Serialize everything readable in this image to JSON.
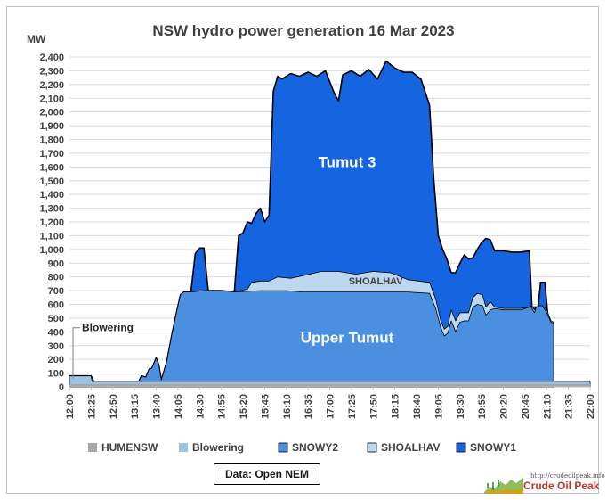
{
  "chart_data": {
    "type": "area",
    "title": "NSW hydro power generation  16 Mar 2023",
    "ylabel": "MW",
    "xlabel": "",
    "ylim": [
      0,
      2400
    ],
    "yticks": [
      0,
      100,
      200,
      300,
      400,
      500,
      600,
      700,
      800,
      900,
      1000,
      1100,
      1200,
      1300,
      1400,
      1500,
      1600,
      1700,
      1800,
      1900,
      2000,
      2100,
      2200,
      2300,
      2400
    ],
    "ytick_labels": [
      "0",
      "100",
      "200",
      "300",
      "400",
      "500",
      "600",
      "700",
      "800",
      "900",
      "1,000",
      "1,100",
      "1,200",
      "1,300",
      "1,400",
      "1,500",
      "1,600",
      "1,700",
      "1,800",
      "1,900",
      "2,000",
      "2,100",
      "2,200",
      "2,300",
      "2,400"
    ],
    "x_range_minutes": [
      720,
      1320
    ],
    "xtick_labels": [
      "12:00",
      "12:25",
      "12:50",
      "13:15",
      "13:40",
      "14:05",
      "14:30",
      "14:55",
      "15:20",
      "15:45",
      "16:10",
      "16:35",
      "17:00",
      "17:25",
      "17:50",
      "18:15",
      "18:40",
      "19:05",
      "19:30",
      "19:55",
      "20:20",
      "20:45",
      "21:10",
      "21:35",
      "22:00"
    ],
    "grid": true,
    "legend_position": "bottom",
    "stacked": true,
    "series": [
      {
        "name": "HUMENSW",
        "color": "#a6a6a6",
        "points": [
          [
            720,
            0
          ],
          [
            1320,
            0
          ]
        ]
      },
      {
        "name": "Blowering",
        "color": "#9dc3e6",
        "points": [
          [
            720,
            80
          ],
          [
            745,
            80
          ],
          [
            746,
            40
          ],
          [
            795,
            40
          ],
          [
            796,
            40
          ],
          [
            1320,
            40
          ]
        ]
      },
      {
        "name": "SNOWY2",
        "color": "#4a8fe0",
        "points": [
          [
            720,
            80
          ],
          [
            745,
            80
          ],
          [
            748,
            40
          ],
          [
            800,
            40
          ],
          [
            803,
            80
          ],
          [
            808,
            70
          ],
          [
            812,
            130
          ],
          [
            815,
            135
          ],
          [
            820,
            210
          ],
          [
            823,
            160
          ],
          [
            826,
            50
          ],
          [
            832,
            180
          ],
          [
            838,
            380
          ],
          [
            843,
            530
          ],
          [
            848,
            670
          ],
          [
            852,
            690
          ],
          [
            860,
            690
          ],
          [
            875,
            700
          ],
          [
            895,
            700
          ],
          [
            910,
            690
          ],
          [
            940,
            700
          ],
          [
            970,
            700
          ],
          [
            990,
            690
          ],
          [
            1010,
            690
          ],
          [
            1040,
            690
          ],
          [
            1070,
            690
          ],
          [
            1110,
            690
          ],
          [
            1135,
            680
          ],
          [
            1142,
            570
          ],
          [
            1148,
            430
          ],
          [
            1152,
            370
          ],
          [
            1156,
            390
          ],
          [
            1160,
            480
          ],
          [
            1165,
            400
          ],
          [
            1170,
            470
          ],
          [
            1175,
            480
          ],
          [
            1180,
            480
          ],
          [
            1185,
            580
          ],
          [
            1190,
            600
          ],
          [
            1196,
            590
          ],
          [
            1200,
            520
          ],
          [
            1205,
            560
          ],
          [
            1210,
            570
          ],
          [
            1220,
            560
          ],
          [
            1240,
            560
          ],
          [
            1250,
            580
          ],
          [
            1252,
            580
          ],
          [
            1256,
            540
          ],
          [
            1258,
            580
          ],
          [
            1262,
            590
          ],
          [
            1265,
            590
          ],
          [
            1270,
            540
          ],
          [
            1275,
            470
          ],
          [
            1278,
            460
          ]
        ]
      },
      {
        "name": "SHOALHAV",
        "color": "#bdd7ee",
        "points": [
          [
            720,
            80
          ],
          [
            745,
            80
          ],
          [
            748,
            40
          ],
          [
            800,
            40
          ],
          [
            803,
            80
          ],
          [
            808,
            70
          ],
          [
            812,
            130
          ],
          [
            815,
            135
          ],
          [
            820,
            210
          ],
          [
            823,
            160
          ],
          [
            826,
            50
          ],
          [
            832,
            180
          ],
          [
            838,
            380
          ],
          [
            843,
            530
          ],
          [
            848,
            670
          ],
          [
            852,
            690
          ],
          [
            860,
            690
          ],
          [
            875,
            700
          ],
          [
            895,
            700
          ],
          [
            910,
            690
          ],
          [
            925,
            710
          ],
          [
            930,
            760
          ],
          [
            940,
            770
          ],
          [
            950,
            770
          ],
          [
            960,
            800
          ],
          [
            975,
            790
          ],
          [
            990,
            810
          ],
          [
            1010,
            840
          ],
          [
            1030,
            840
          ],
          [
            1050,
            820
          ],
          [
            1070,
            840
          ],
          [
            1090,
            830
          ],
          [
            1110,
            780
          ],
          [
            1135,
            760
          ],
          [
            1142,
            640
          ],
          [
            1148,
            480
          ],
          [
            1152,
            420
          ],
          [
            1156,
            440
          ],
          [
            1160,
            560
          ],
          [
            1165,
            480
          ],
          [
            1170,
            540
          ],
          [
            1175,
            540
          ],
          [
            1180,
            540
          ],
          [
            1185,
            650
          ],
          [
            1190,
            680
          ],
          [
            1196,
            670
          ],
          [
            1200,
            580
          ],
          [
            1205,
            620
          ],
          [
            1210,
            580
          ],
          [
            1220,
            570
          ],
          [
            1240,
            570
          ],
          [
            1250,
            580
          ],
          [
            1252,
            590
          ],
          [
            1256,
            560
          ],
          [
            1258,
            580
          ],
          [
            1262,
            590
          ],
          [
            1265,
            590
          ],
          [
            1270,
            560
          ],
          [
            1275,
            480
          ],
          [
            1278,
            470
          ]
        ]
      },
      {
        "name": "SNOWY1",
        "color": "#1565e0",
        "points": [
          [
            720,
            80
          ],
          [
            745,
            80
          ],
          [
            748,
            40
          ],
          [
            800,
            40
          ],
          [
            803,
            80
          ],
          [
            808,
            70
          ],
          [
            812,
            130
          ],
          [
            815,
            135
          ],
          [
            820,
            210
          ],
          [
            823,
            160
          ],
          [
            826,
            50
          ],
          [
            832,
            180
          ],
          [
            838,
            380
          ],
          [
            843,
            530
          ],
          [
            848,
            670
          ],
          [
            852,
            690
          ],
          [
            860,
            690
          ],
          [
            865,
            970
          ],
          [
            870,
            1010
          ],
          [
            875,
            1010
          ],
          [
            880,
            700
          ],
          [
            895,
            700
          ],
          [
            910,
            690
          ],
          [
            915,
            1100
          ],
          [
            920,
            1120
          ],
          [
            925,
            1200
          ],
          [
            930,
            1190
          ],
          [
            935,
            1260
          ],
          [
            940,
            1300
          ],
          [
            945,
            1200
          ],
          [
            950,
            1250
          ],
          [
            955,
            2150
          ],
          [
            960,
            2260
          ],
          [
            965,
            2240
          ],
          [
            975,
            2280
          ],
          [
            985,
            2260
          ],
          [
            995,
            2290
          ],
          [
            1005,
            2260
          ],
          [
            1015,
            2300
          ],
          [
            1025,
            2140
          ],
          [
            1030,
            2080
          ],
          [
            1035,
            2270
          ],
          [
            1045,
            2300
          ],
          [
            1055,
            2260
          ],
          [
            1065,
            2310
          ],
          [
            1075,
            2240
          ],
          [
            1085,
            2370
          ],
          [
            1095,
            2320
          ],
          [
            1105,
            2290
          ],
          [
            1115,
            2290
          ],
          [
            1125,
            2240
          ],
          [
            1135,
            2050
          ],
          [
            1140,
            1500
          ],
          [
            1145,
            1100
          ],
          [
            1150,
            1000
          ],
          [
            1155,
            930
          ],
          [
            1160,
            830
          ],
          [
            1165,
            830
          ],
          [
            1170,
            900
          ],
          [
            1175,
            960
          ],
          [
            1180,
            930
          ],
          [
            1185,
            940
          ],
          [
            1190,
            1000
          ],
          [
            1195,
            1050
          ],
          [
            1200,
            1080
          ],
          [
            1205,
            1070
          ],
          [
            1210,
            990
          ],
          [
            1220,
            990
          ],
          [
            1230,
            980
          ],
          [
            1240,
            980
          ],
          [
            1250,
            990
          ],
          [
            1253,
            580
          ],
          [
            1260,
            580
          ],
          [
            1263,
            760
          ],
          [
            1268,
            760
          ],
          [
            1272,
            470
          ],
          [
            1278,
            460
          ]
        ]
      }
    ],
    "annotations": [
      "Tumut 3",
      "SHOALHAV",
      "Upper Tumut",
      "Blowering"
    ],
    "source_note": "Data: Open NEM"
  },
  "logo": {
    "url_text": "http://crudeoilpeak.info",
    "name": "Crude Oil Peak"
  }
}
